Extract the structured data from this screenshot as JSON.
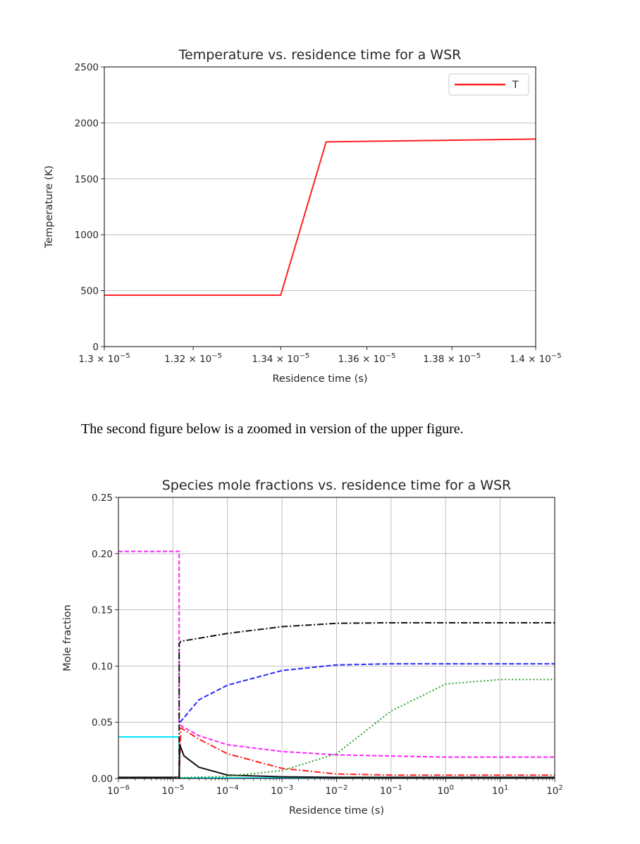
{
  "caption": "The second figure below is a zoomed in version of the upper figure.",
  "chart_data": [
    {
      "type": "line",
      "title": "Temperature vs. residence time for a WSR",
      "xlabel": "Residence time (s)",
      "ylabel": "Temperature (K)",
      "xlim": [
        1.3e-05,
        1.4e-05
      ],
      "ylim": [
        0,
        2500
      ],
      "x_scale": "log",
      "grid": "y",
      "legend": "top-right",
      "x_ticks": [
        {
          "v": 1.3e-05,
          "m": "1.3 × 10",
          "e": "−5"
        },
        {
          "v": 1.32e-05,
          "m": "1.32 × 10",
          "e": "−5"
        },
        {
          "v": 1.34e-05,
          "m": "1.34 × 10",
          "e": "−5"
        },
        {
          "v": 1.36e-05,
          "m": "1.36 × 10",
          "e": "−5"
        },
        {
          "v": 1.38e-05,
          "m": "1.38 × 10",
          "e": "−5"
        },
        {
          "v": 1.4e-05,
          "m": "1.4 × 10",
          "e": "−5"
        }
      ],
      "y_ticks": [
        "0",
        "500",
        "1000",
        "1500",
        "2000",
        "2500"
      ],
      "series": [
        {
          "name": "T",
          "color": "#ff2020",
          "dash": "",
          "x": [
            1.3e-05,
            1.34e-05,
            1.3505e-05,
            1.4e-05
          ],
          "y": [
            460,
            460,
            1830,
            1855
          ]
        }
      ]
    },
    {
      "type": "line",
      "title": "Species mole fractions vs. residence time for a WSR",
      "xlabel": "Residence time (s)",
      "ylabel": "Mole fraction",
      "xlim": [
        1e-06,
        100
      ],
      "ylim": [
        0,
        0.25
      ],
      "x_scale": "log",
      "grid": "both",
      "x_ticks": [
        {
          "v": 1e-06,
          "m": "10",
          "e": "−6"
        },
        {
          "v": 1e-05,
          "m": "10",
          "e": "−5"
        },
        {
          "v": 0.0001,
          "m": "10",
          "e": "−4"
        },
        {
          "v": 0.001,
          "m": "10",
          "e": "−3"
        },
        {
          "v": 0.01,
          "m": "10",
          "e": "−2"
        },
        {
          "v": 0.1,
          "m": "10",
          "e": "−1"
        },
        {
          "v": 1,
          "m": "10",
          "e": "0"
        },
        {
          "v": 10,
          "m": "10",
          "e": "1"
        },
        {
          "v": 100,
          "m": "10",
          "e": "2"
        }
      ],
      "y_ticks": [
        "0.00",
        "0.05",
        "0.10",
        "0.15",
        "0.20",
        "0.25"
      ],
      "series": [
        {
          "color": "#ff22ff",
          "dash": "6,3",
          "x": [
            1e-06,
            1.3e-05,
            1.3e-05,
            1.4e-05,
            3e-05,
            0.0001,
            0.001,
            0.01,
            0.1,
            1,
            10,
            100
          ],
          "y": [
            0.202,
            0.202,
            0.05,
            0.047,
            0.038,
            0.03,
            0.024,
            0.021,
            0.02,
            0.019,
            0.019,
            0.019
          ]
        },
        {
          "color": "#00e5ff",
          "dash": "",
          "x": [
            1e-06,
            1.3e-05,
            1.32e-05,
            100
          ],
          "y": [
            0.037,
            0.037,
            0.0005,
            0.0005
          ]
        },
        {
          "color": "#111111",
          "dash": "9,3,2,3",
          "x": [
            1e-06,
            1.3e-05,
            1.3e-05,
            1.4e-05,
            0.0001,
            0.001,
            0.01,
            0.1,
            1,
            10,
            100
          ],
          "y": [
            0.0005,
            0.0005,
            0.12,
            0.122,
            0.129,
            0.135,
            0.138,
            0.1385,
            0.1385,
            0.1385,
            0.1385
          ]
        },
        {
          "color": "#2a2aff",
          "dash": "7,3",
          "x": [
            1.35e-05,
            3e-05,
            0.0001,
            0.001,
            0.01,
            0.1,
            1,
            10,
            100
          ],
          "y": [
            0.05,
            0.07,
            0.083,
            0.096,
            0.101,
            0.102,
            0.102,
            0.102,
            0.102
          ]
        },
        {
          "color": "#ff2020",
          "dash": "9,3,2,3",
          "x": [
            1.3e-05,
            1.4e-05,
            3e-05,
            0.0001,
            0.001,
            0.01,
            0.1,
            1,
            10,
            100
          ],
          "y": [
            0.001,
            0.045,
            0.035,
            0.022,
            0.009,
            0.004,
            0.003,
            0.003,
            0.003,
            0.003
          ]
        },
        {
          "color": "#111111",
          "dash": "",
          "x": [
            1e-06,
            1.3e-05,
            1.33e-05,
            1.6e-05,
            3e-05,
            0.0001,
            0.001,
            0.01,
            100
          ],
          "y": [
            0.001,
            0.001,
            0.03,
            0.02,
            0.01,
            0.003,
            0.0015,
            0.001,
            0.001
          ]
        },
        {
          "color": "#2ca02c",
          "dash": "2,3",
          "x": [
            1e-05,
            0.0001,
            0.001,
            0.01,
            0.1,
            1,
            10,
            100
          ],
          "y": [
            0.0005,
            0.002,
            0.007,
            0.022,
            0.06,
            0.084,
            0.088,
            0.088
          ]
        }
      ]
    }
  ]
}
